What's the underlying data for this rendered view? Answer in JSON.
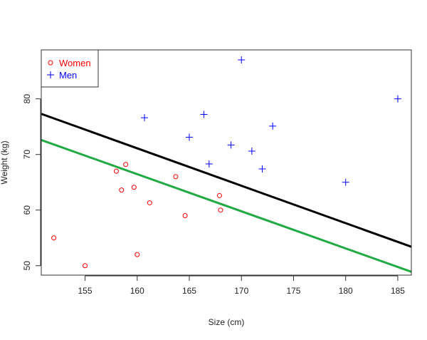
{
  "chart_data": {
    "type": "scatter",
    "title": "",
    "xlabel": "Size (cm)",
    "ylabel": "Weight (kg)",
    "xlim": [
      150.8,
      186.3
    ],
    "ylim": [
      48.3,
      88.8
    ],
    "x_ticks": [
      155,
      160,
      165,
      170,
      175,
      180,
      185
    ],
    "y_ticks": [
      50,
      60,
      70,
      80
    ],
    "grid": false,
    "legend_position": "top-left",
    "series": [
      {
        "name": "Women",
        "marker": "circle",
        "color": "#ff0000",
        "points": [
          {
            "x": 152.0,
            "y": 55.0
          },
          {
            "x": 155.0,
            "y": 50.0
          },
          {
            "x": 158.0,
            "y": 67.0
          },
          {
            "x": 158.5,
            "y": 63.6
          },
          {
            "x": 158.9,
            "y": 68.2
          },
          {
            "x": 159.7,
            "y": 64.1
          },
          {
            "x": 160.0,
            "y": 52.0
          },
          {
            "x": 161.2,
            "y": 61.3
          },
          {
            "x": 163.7,
            "y": 66.0
          },
          {
            "x": 164.6,
            "y": 59.0
          },
          {
            "x": 167.9,
            "y": 62.6
          },
          {
            "x": 168.0,
            "y": 60.0
          }
        ]
      },
      {
        "name": "Men",
        "marker": "plus",
        "color": "#0000ff",
        "points": [
          {
            "x": 160.7,
            "y": 76.6
          },
          {
            "x": 165.0,
            "y": 73.1
          },
          {
            "x": 166.4,
            "y": 77.2
          },
          {
            "x": 166.9,
            "y": 68.3
          },
          {
            "x": 169.0,
            "y": 71.7
          },
          {
            "x": 170.0,
            "y": 87.0
          },
          {
            "x": 171.0,
            "y": 70.6
          },
          {
            "x": 172.0,
            "y": 67.4
          },
          {
            "x": 173.0,
            "y": 75.1
          },
          {
            "x": 180.0,
            "y": 65.0
          },
          {
            "x": 185.0,
            "y": 80.0
          }
        ]
      }
    ],
    "lines": [
      {
        "color": "#000000",
        "x": [
          150.8,
          186.3
        ],
        "y": [
          77.3,
          53.4
        ]
      },
      {
        "color": "#22aa44",
        "x": [
          150.8,
          186.3
        ],
        "y": [
          72.6,
          48.9
        ]
      }
    ]
  }
}
